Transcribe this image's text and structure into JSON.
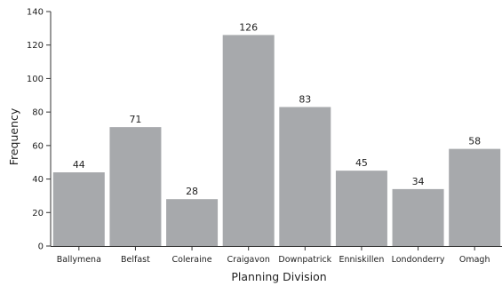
{
  "chart_data": {
    "type": "bar",
    "title": "",
    "xlabel": "Planning Division",
    "ylabel": "Frequency",
    "ylim": [
      0,
      140
    ],
    "yticks": [
      0,
      20,
      40,
      60,
      80,
      100,
      120,
      140
    ],
    "categories": [
      "Ballymena",
      "Belfast",
      "Coleraine",
      "Craigavon",
      "Downpatrick",
      "Enniskillen",
      "Londonderry",
      "Omagh"
    ],
    "values": [
      44,
      71,
      28,
      126,
      83,
      45,
      34,
      58
    ],
    "grid": false,
    "bar_color": "#a7a9ac",
    "axis_color": "#333333"
  }
}
